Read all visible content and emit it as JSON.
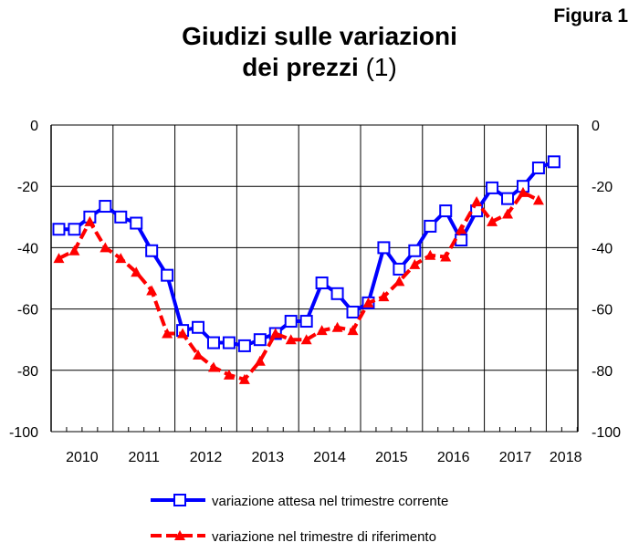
{
  "figure_label": "Figura 1",
  "chart_data": {
    "type": "line",
    "title_line1": "Giudizi sulle variazioni",
    "title_line2": "dei prezzi",
    "title_note": "(1)",
    "xlabel": "",
    "ylabel": "",
    "ylim": [
      -100,
      0
    ],
    "yticks": [
      0,
      -20,
      -40,
      -60,
      -80,
      -100
    ],
    "years": [
      "2010",
      "2011",
      "2012",
      "2013",
      "2014",
      "2015",
      "2016",
      "2017",
      "2018"
    ],
    "x_frequency": "quarterly",
    "grid": true,
    "legend_position": "bottom",
    "series": [
      {
        "name": "variazione attesa nel trimestre corrente",
        "color": "#0000ff",
        "marker": "square",
        "start": "2010Q1",
        "values": [
          -34,
          -34,
          -30,
          -26.5,
          -30,
          -32,
          -41,
          -49,
          -67,
          -66,
          -71,
          -71,
          -72,
          -70,
          -68,
          -64,
          -64,
          -51.5,
          -55,
          -61,
          -58,
          -40,
          -47,
          -41,
          -33,
          -28,
          -37.5,
          -28,
          -20.5,
          -24,
          -20,
          -14,
          -12
        ]
      },
      {
        "name": "variazione nel trimestre di riferimento",
        "color": "#ff0000",
        "marker": "triangle",
        "start": "2010Q1",
        "values": [
          -43.5,
          -41,
          -31.5,
          -40,
          -43.5,
          -48,
          -54,
          -68,
          -68,
          -75,
          -79,
          -81.5,
          -83,
          -77,
          -68,
          -70,
          -70,
          -67,
          -66,
          -67,
          -58,
          -56,
          -51,
          -45.5,
          -42.5,
          -43,
          -34,
          -25,
          -31.5,
          -29,
          -22,
          -24.5
        ]
      }
    ]
  }
}
